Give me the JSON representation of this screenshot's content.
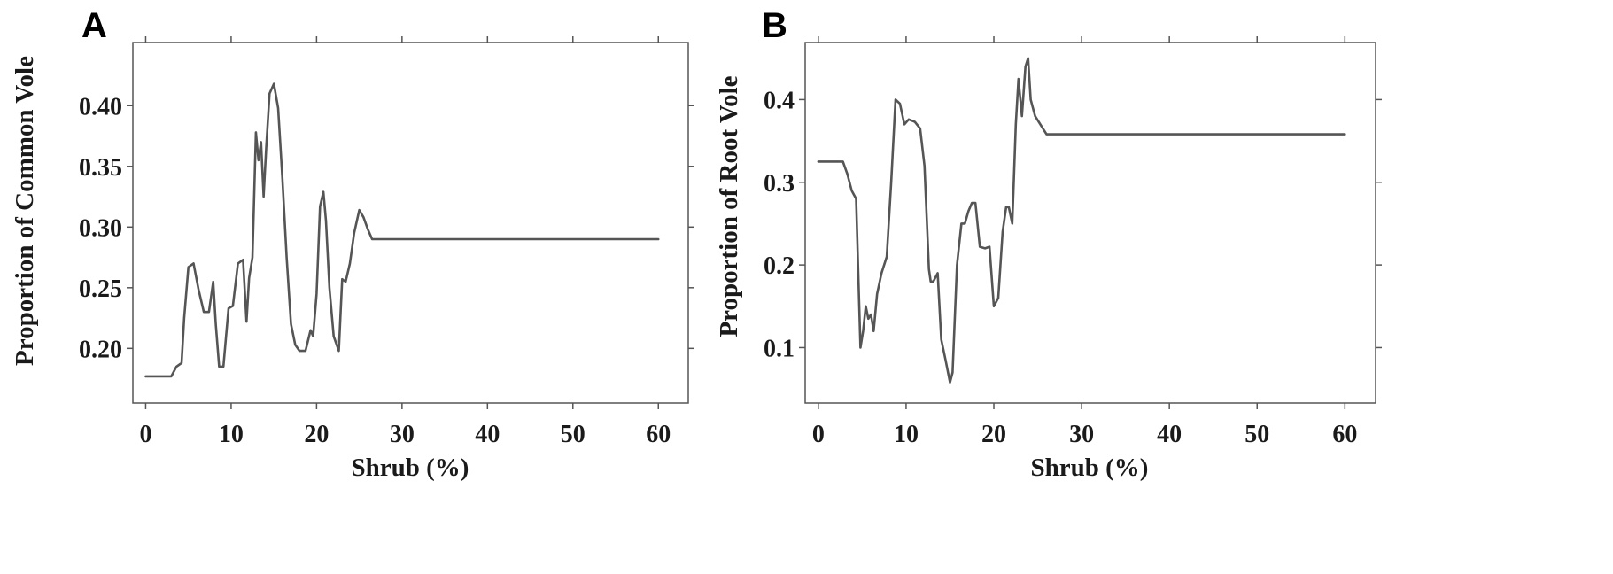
{
  "chart_data": [
    {
      "type": "line",
      "panel": "A",
      "xlabel": "Shrub (%)",
      "ylabel": "Proportion of Common Vole",
      "xlim": [
        -1.5,
        63.5
      ],
      "ylim": [
        0.155,
        0.452
      ],
      "xticks": [
        0,
        10,
        20,
        30,
        40,
        50,
        60
      ],
      "xtick_labels": [
        "0",
        "10",
        "20",
        "30",
        "40",
        "50",
        "60"
      ],
      "yticks": [
        0.2,
        0.25,
        0.3,
        0.35,
        0.4
      ],
      "ytick_labels": [
        "0.20",
        "0.25",
        "0.30",
        "0.35",
        "0.40"
      ],
      "grid": false,
      "series": [
        {
          "color": "#555555",
          "x": [
            0,
            3,
            3.6,
            4.2,
            4.5,
            5,
            5.6,
            6.2,
            6.8,
            7.4,
            7.9,
            8.2,
            8.6,
            9.1,
            9.7,
            10.2,
            10.8,
            11.4,
            11.8,
            12.1,
            12.5,
            12.9,
            13.2,
            13.5,
            13.8,
            14.1,
            14.5,
            15,
            15.5,
            16,
            16.5,
            17,
            17.5,
            18,
            18.7,
            19.3,
            19.6,
            20,
            20.4,
            20.8,
            21.1,
            21.5,
            22,
            22.6,
            23,
            23.4,
            23.9,
            24.4,
            25,
            25.5,
            26,
            26.5,
            28,
            60
          ],
          "y": [
            0.177,
            0.177,
            0.185,
            0.188,
            0.225,
            0.267,
            0.27,
            0.248,
            0.23,
            0.23,
            0.255,
            0.22,
            0.185,
            0.185,
            0.233,
            0.235,
            0.27,
            0.273,
            0.222,
            0.258,
            0.275,
            0.378,
            0.355,
            0.37,
            0.325,
            0.365,
            0.41,
            0.418,
            0.398,
            0.34,
            0.275,
            0.22,
            0.203,
            0.198,
            0.198,
            0.215,
            0.21,
            0.245,
            0.317,
            0.329,
            0.305,
            0.25,
            0.21,
            0.198,
            0.257,
            0.255,
            0.27,
            0.295,
            0.314,
            0.308,
            0.298,
            0.29,
            0.29,
            0.29
          ]
        }
      ]
    },
    {
      "type": "line",
      "panel": "B",
      "xlabel": "Shrub (%)",
      "ylabel": "Proportion of Root Vole",
      "xlim": [
        -1.5,
        63.5
      ],
      "ylim": [
        0.033,
        0.469
      ],
      "xticks": [
        0,
        10,
        20,
        30,
        40,
        50,
        60
      ],
      "xtick_labels": [
        "0",
        "10",
        "20",
        "30",
        "40",
        "50",
        "60"
      ],
      "yticks": [
        0.1,
        0.2,
        0.3,
        0.4
      ],
      "ytick_labels": [
        "0.1",
        "0.2",
        "0.3",
        "0.4"
      ],
      "grid": false,
      "series": [
        {
          "color": "#555555",
          "x": [
            0,
            2.8,
            3.3,
            3.8,
            4.3,
            4.8,
            5.1,
            5.4,
            5.7,
            6.0,
            6.3,
            6.7,
            7.2,
            7.8,
            8.3,
            8.8,
            9.3,
            9.8,
            10.3,
            11,
            11.6,
            12.1,
            12.6,
            12.8,
            13.1,
            13.6,
            14,
            14.5,
            15,
            15.3,
            15.8,
            16.3,
            16.7,
            17.1,
            17.5,
            17.9,
            18.4,
            19,
            19.5,
            20,
            20.5,
            21,
            21.4,
            21.7,
            22.1,
            22.5,
            22.8,
            23.2,
            23.6,
            23.9,
            24.2,
            24.7,
            25.3,
            26,
            60
          ],
          "y": [
            0.325,
            0.325,
            0.31,
            0.29,
            0.28,
            0.1,
            0.12,
            0.15,
            0.135,
            0.14,
            0.12,
            0.165,
            0.19,
            0.21,
            0.3,
            0.4,
            0.395,
            0.37,
            0.376,
            0.373,
            0.365,
            0.32,
            0.195,
            0.18,
            0.18,
            0.19,
            0.11,
            0.085,
            0.058,
            0.07,
            0.2,
            0.25,
            0.25,
            0.265,
            0.275,
            0.275,
            0.222,
            0.22,
            0.222,
            0.15,
            0.16,
            0.24,
            0.27,
            0.27,
            0.25,
            0.37,
            0.425,
            0.38,
            0.44,
            0.45,
            0.4,
            0.38,
            0.37,
            0.358,
            0.358
          ]
        }
      ]
    }
  ]
}
